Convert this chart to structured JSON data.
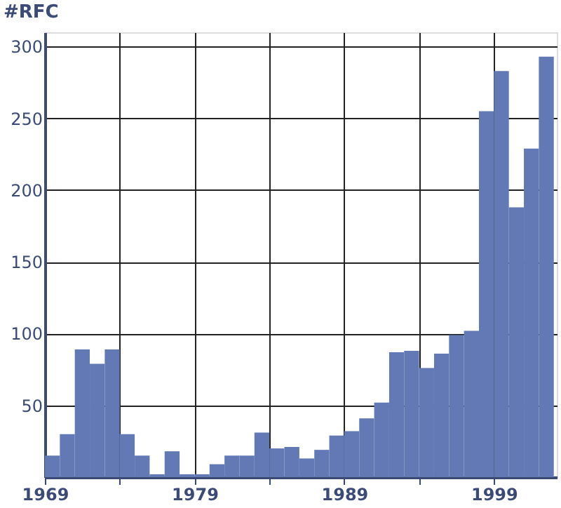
{
  "chart_data": {
    "type": "histogram",
    "ylabel": "#RFC",
    "bins": [
      1969,
      1970,
      1971,
      1972,
      1973,
      1974,
      1975,
      1976,
      1977,
      1978,
      1979,
      1980,
      1981,
      1982,
      1983,
      1984,
      1985,
      1986,
      1987,
      1988,
      1989,
      1990,
      1991,
      1992,
      1993,
      1994,
      1995,
      1996,
      1997,
      1998,
      1999,
      2000,
      2001,
      2002,
      2003
    ],
    "values": [
      15,
      30,
      89,
      79,
      89,
      30,
      15,
      2,
      18,
      2,
      2,
      9,
      15,
      15,
      31,
      20,
      21,
      13,
      19,
      29,
      32,
      41,
      52,
      87,
      88,
      76,
      86,
      99,
      102,
      255,
      283,
      188,
      229,
      293
    ],
    "color": "#6379b5",
    "xlim": [
      1969,
      2003.2
    ],
    "xticks": [
      1969,
      {
        "value": 1974,
        "label": null
      },
      1979,
      {
        "value": 1984,
        "label": null
      },
      1989,
      {
        "value": 1994,
        "label": null
      },
      1999
    ],
    "ylim": [
      0,
      310
    ],
    "yticks": [
      50,
      100,
      150,
      200,
      250,
      300
    ],
    "grid": true
  }
}
